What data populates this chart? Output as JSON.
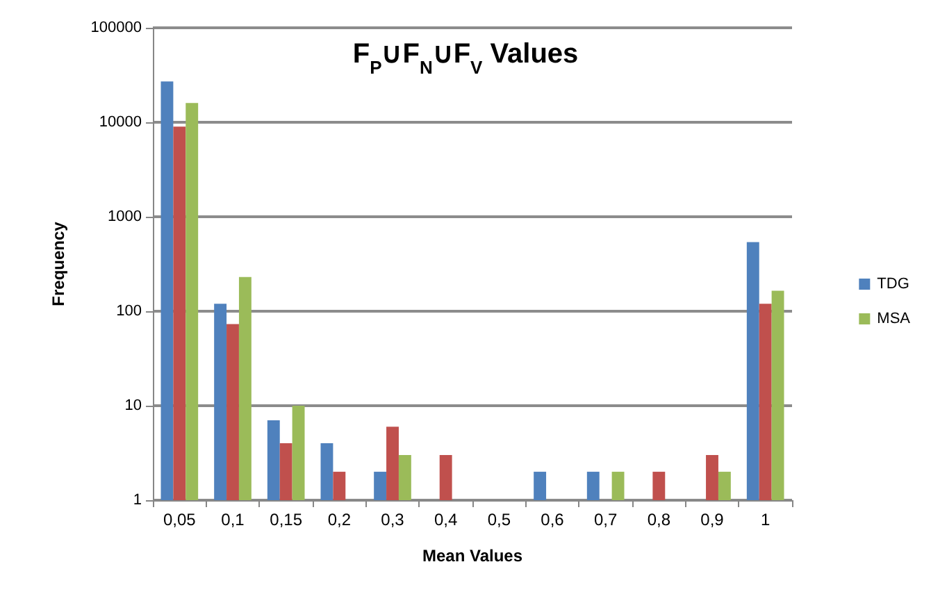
{
  "chart_data": {
    "type": "bar",
    "title": "F$_{P}$∪F$_{N}$∪F$_{V}$ Values",
    "xlabel": "Mean Values",
    "ylabel": "Frequency",
    "categories": [
      "0,05",
      "0,1",
      "0,15",
      "0,2",
      "0,3",
      "0,4",
      "0,5",
      "0,6",
      "0,7",
      "0,8",
      "0,9",
      "1"
    ],
    "series": [
      {
        "name": "TDG",
        "color": "#4f81bd",
        "values": [
          27000,
          120,
          7,
          4,
          2,
          null,
          null,
          2,
          2,
          null,
          null,
          540
        ]
      },
      {
        "color": "#c0504d",
        "values": [
          9000,
          73,
          4,
          2,
          6,
          3,
          null,
          null,
          null,
          2,
          3,
          120
        ]
      },
      {
        "name": "MSA",
        "color": "#9bbb59",
        "values": [
          16000,
          230,
          10,
          null,
          3,
          null,
          null,
          null,
          2,
          null,
          2,
          165
        ]
      }
    ],
    "log": true,
    "ylim": [
      1,
      100000
    ],
    "yticks": [
      1,
      10,
      100,
      1000,
      10000,
      100000
    ],
    "grid": "y",
    "legend": "right"
  }
}
